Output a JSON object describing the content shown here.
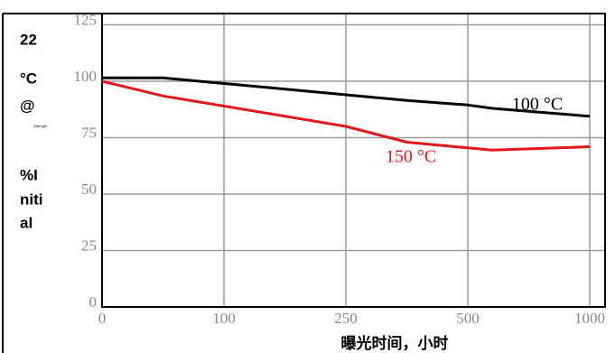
{
  "chart_data": {
    "type": "line",
    "ylabel_lines": [
      "22",
      "°C",
      "@",
      "%I",
      "niti",
      "al"
    ],
    "ylabel_note": "Strength",
    "xlabel": "曝光时间，小时",
    "x": [
      0,
      50,
      100,
      250,
      375,
      500,
      600,
      1000
    ],
    "series": [
      {
        "name": "100 °C",
        "color": "#000000",
        "values": [
          101.5,
          101.5,
          99,
          94,
          91.5,
          89.5,
          88,
          84.5
        ]
      },
      {
        "name": "150 °C",
        "color": "#e8161b",
        "values": [
          100,
          93.5,
          89,
          80,
          73,
          70.5,
          69.5,
          71
        ]
      }
    ],
    "xlim": [
      0,
      1000
    ],
    "xticks": [
      0,
      100,
      250,
      500,
      1000
    ],
    "ylim": [
      0,
      130
    ],
    "yticks": [
      0,
      25,
      50,
      75,
      100,
      125
    ],
    "grid": true
  }
}
